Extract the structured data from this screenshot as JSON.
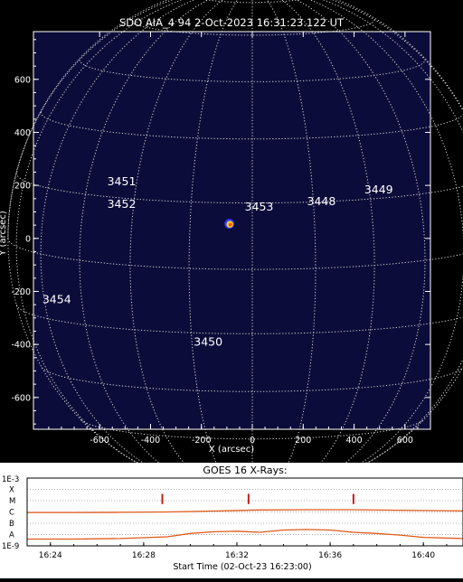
{
  "chart_data": [
    {
      "type": "image",
      "title": "SDO AIA_4 94  2-Oct-2023 16:31:23.122 UT",
      "xlabel": "X (arcsec)",
      "ylabel": "Y (arcsec)",
      "xlim": [
        -860,
        700
      ],
      "ylim": [
        -720,
        780
      ],
      "xticks": [
        -600,
        -400,
        -200,
        0,
        200,
        400,
        600
      ],
      "yticks": [
        -600,
        -400,
        -200,
        0,
        200,
        400,
        600
      ],
      "grid": true,
      "background_color": "#0c0c3a",
      "grid_color": "#d8d8d8",
      "flare": {
        "x": -90,
        "y": 55
      },
      "active_regions": [
        {
          "label": "3451",
          "x": -570,
          "y": 200
        },
        {
          "label": "3452",
          "x": -570,
          "y": 115
        },
        {
          "label": "3453",
          "x": -30,
          "y": 105
        },
        {
          "label": "3448",
          "x": 215,
          "y": 125
        },
        {
          "label": "3449",
          "x": 440,
          "y": 170
        },
        {
          "label": "3454",
          "x": -825,
          "y": -245
        },
        {
          "label": "3450",
          "x": -230,
          "y": -405
        }
      ]
    },
    {
      "type": "line",
      "title": "GOES 16 X-Rays:",
      "xlabel": "Start Time (02-Oct-23 16:23:00)",
      "x_ticks": [
        {
          "label": "16:24",
          "minutes": 1
        },
        {
          "label": "16:28",
          "minutes": 5
        },
        {
          "label": "16:32",
          "minutes": 9
        },
        {
          "label": "16:36",
          "minutes": 13
        },
        {
          "label": "16:40",
          "minutes": 17
        }
      ],
      "xlim_minutes": [
        0,
        18.7
      ],
      "y_classes": [
        {
          "label": "X",
          "log_flux": -4
        },
        {
          "label": "M",
          "log_flux": -5
        },
        {
          "label": "C",
          "log_flux": -6
        },
        {
          "label": "B",
          "log_flux": -7
        },
        {
          "label": "A",
          "log_flux": -8
        }
      ],
      "y_top_label": "1E-3",
      "y_bottom_label": "1E-9",
      "ylim_log": [
        -9,
        -3
      ],
      "line_color": "#e05a1a",
      "series": [
        {
          "minutes": [
            0,
            2,
            4,
            6,
            8,
            10,
            12,
            14,
            16,
            18.7
          ],
          "log_flux": [
            -6.05,
            -6.05,
            -6.03,
            -6.0,
            -5.92,
            -5.82,
            -5.8,
            -5.8,
            -5.85,
            -5.9
          ]
        },
        {
          "minutes": [
            0,
            2,
            4,
            6,
            7,
            8,
            9,
            10,
            11,
            12,
            13,
            14,
            15,
            16,
            17,
            18.7
          ],
          "log_flux": [
            -8.4,
            -8.4,
            -8.35,
            -8.2,
            -7.9,
            -7.75,
            -7.7,
            -7.8,
            -7.6,
            -7.55,
            -7.6,
            -7.8,
            -7.9,
            -8.05,
            -8.25,
            -8.35
          ]
        }
      ],
      "event_markers_minutes": [
        5.8,
        9.5,
        14.0
      ]
    }
  ]
}
